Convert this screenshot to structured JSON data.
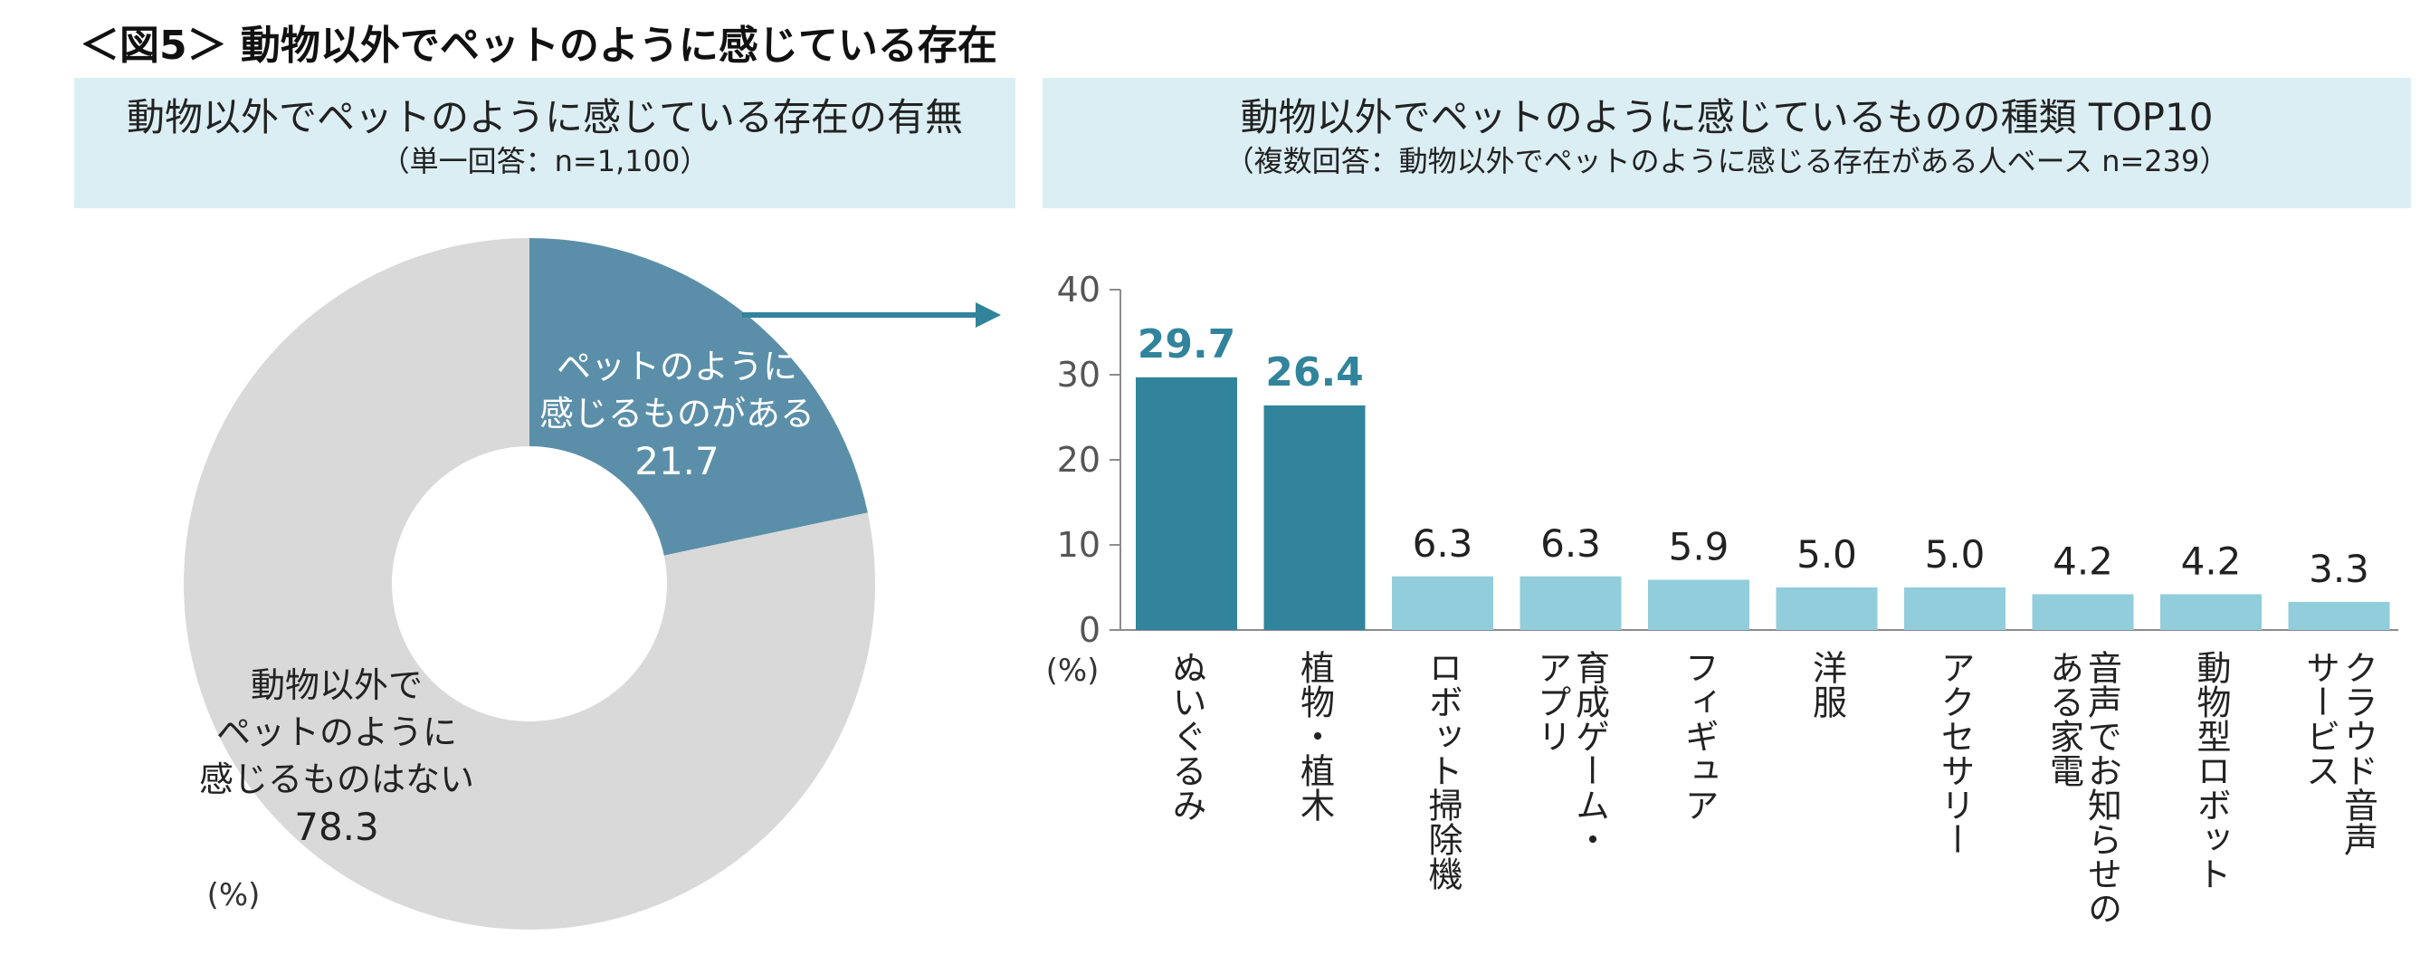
{
  "figure_title": "＜図5＞ 動物以外でペットのように感じている存在",
  "left_panel": {
    "title": "動物以外でペットのように感じている存在の有無",
    "subtitle": "（単一回答：n=1,100）",
    "unit": "(%)"
  },
  "right_panel": {
    "title": "動物以外でペットのように感じているものの種類 TOP10",
    "subtitle": "（複数回答：動物以外でペットのように感じる存在がある人ベース n=239）",
    "unit": "(%)"
  },
  "colors": {
    "donut_highlight": "#5b8fa9",
    "donut_rest": "#d9d9d9",
    "bar_top": "#31849b",
    "bar_rest": "#92cddc",
    "label_top": "#31849b",
    "header_bg": "#dbeef4",
    "arrow": "#31849b"
  },
  "chart_data": [
    {
      "type": "pie",
      "donut": true,
      "slices": [
        {
          "label_lines": [
            "ペットのように",
            "感じるものがある"
          ],
          "value": 21.7,
          "value_text": "21.7"
        },
        {
          "label_lines": [
            "動物以外で",
            "ペットのように",
            "感じるものはない"
          ],
          "value": 78.3,
          "value_text": "78.3"
        }
      ]
    },
    {
      "type": "bar",
      "ylim": [
        0,
        40
      ],
      "yticks": [
        "0",
        "10",
        "20",
        "30",
        "40"
      ],
      "categories": [
        {
          "label_cols": [
            "ぬいぐるみ"
          ]
        },
        {
          "label_cols": [
            "植物・植木"
          ]
        },
        {
          "label_cols": [
            "ロボット掃除機"
          ]
        },
        {
          "label_cols": [
            "育成ゲーム・",
            "アプリ"
          ]
        },
        {
          "label_cols": [
            "フィギュア"
          ]
        },
        {
          "label_cols": [
            "洋服"
          ]
        },
        {
          "label_cols": [
            "アクセサリー"
          ]
        },
        {
          "label_cols": [
            "音声でお知らせの",
            "ある家電"
          ]
        },
        {
          "label_cols": [
            "動物型ロボット"
          ]
        },
        {
          "label_cols": [
            "クラウド音声",
            "サービス"
          ]
        }
      ],
      "values": [
        29.7,
        26.4,
        6.3,
        6.3,
        5.9,
        5.0,
        5.0,
        4.2,
        4.2,
        3.3
      ],
      "value_labels": [
        "29.7",
        "26.4",
        "6.3",
        "6.3",
        "5.9",
        "5.0",
        "5.0",
        "4.2",
        "4.2",
        "3.3"
      ],
      "highlight_count": 2
    }
  ]
}
